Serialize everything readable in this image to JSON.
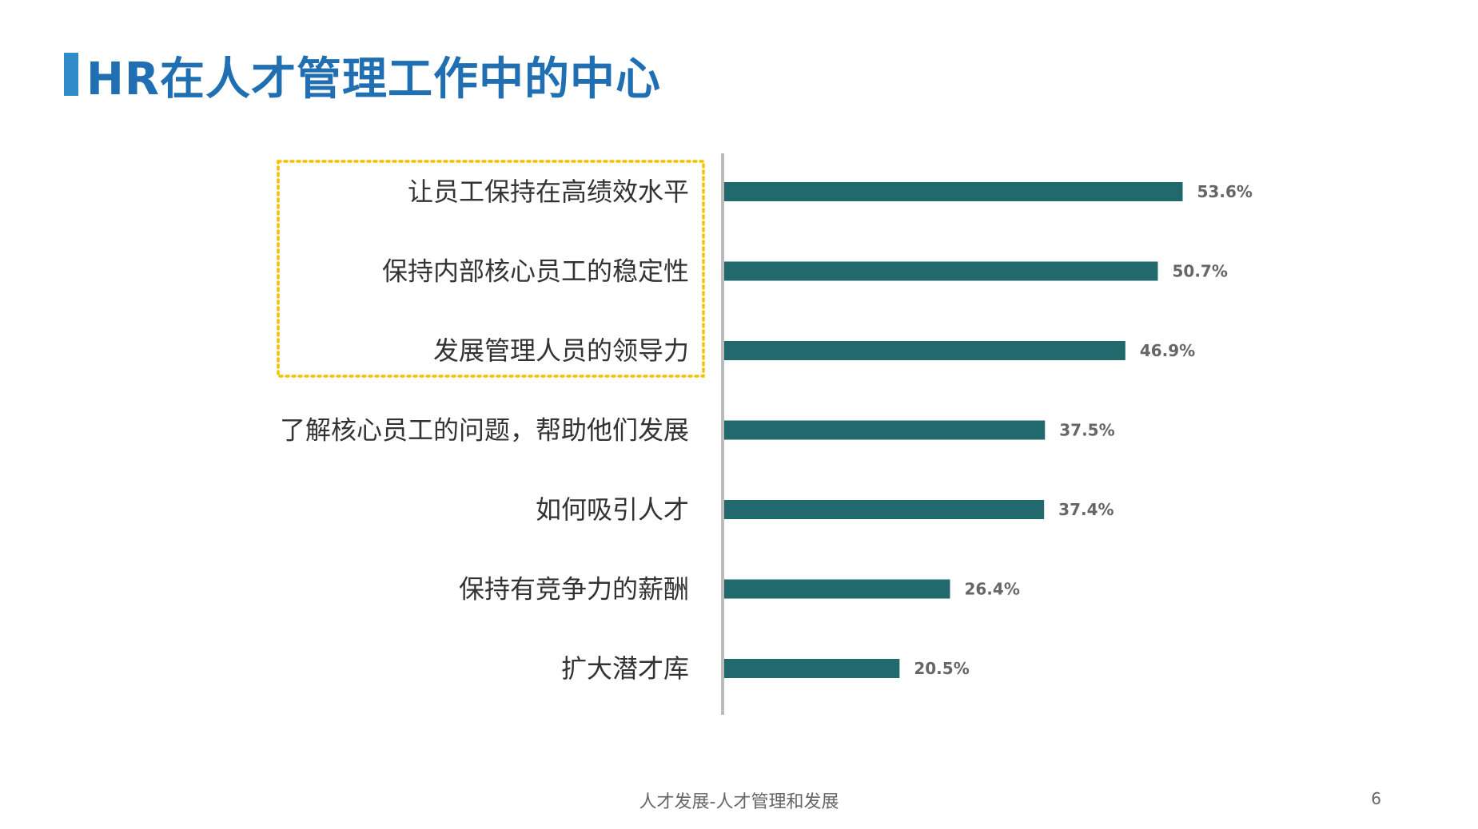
{
  "slide": {
    "title": "HR在人才管理工作中的中心",
    "footer": "人才发展-人才管理和发展",
    "page_number": "6",
    "title_color": "#1f6fb2",
    "title_bar_color": "#2f8bc9"
  },
  "chart_data": {
    "type": "bar",
    "orientation": "horizontal",
    "categories": [
      "让员工保持在高绩效水平",
      "保持内部核心员工的稳定性",
      "发展管理人员的领导力",
      "了解核心员工的问题，帮助他们发展",
      "如何吸引人才",
      "保持有竞争力的薪酬",
      "扩大潜才库"
    ],
    "values": [
      53.6,
      50.7,
      46.9,
      37.5,
      37.4,
      26.4,
      20.5
    ],
    "value_labels": [
      "53.6%",
      "50.7%",
      "46.9%",
      "37.5%",
      "37.4%",
      "26.4%",
      "20.5%"
    ],
    "title": "",
    "xlabel": "",
    "ylabel": "",
    "bar_color": "#22696e",
    "axis_color": "#bbbbbb",
    "grid": false,
    "legend": false,
    "highlight": {
      "categories": [
        0,
        1,
        2
      ],
      "style": "dotted-box",
      "color": "#f2c200"
    }
  }
}
